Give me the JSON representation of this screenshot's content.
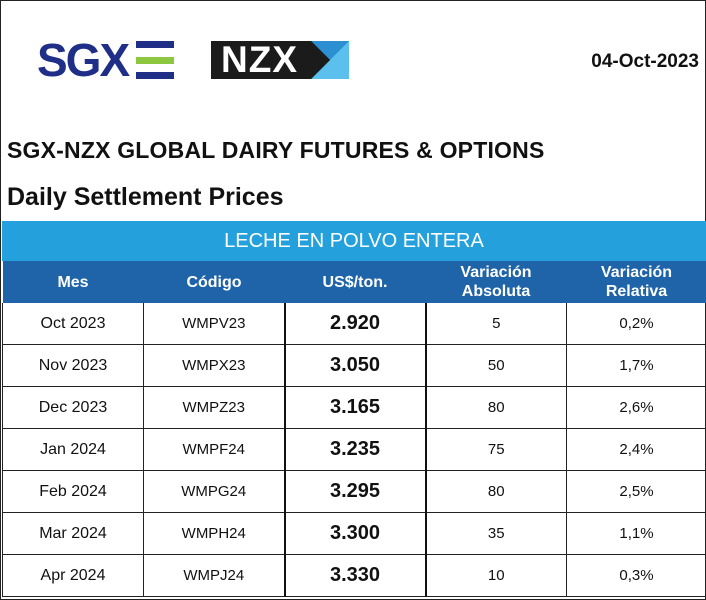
{
  "header": {
    "date": "04-Oct-2023",
    "sgx_logo_text": "SGX",
    "nzx_logo_text": "NZX",
    "title": "SGX-NZX GLOBAL DAIRY FUTURES & OPTIONS",
    "subtitle": "Daily Settlement Prices"
  },
  "colors": {
    "sgx_blue": "#1f2e86",
    "sgx_green": "#8dc63f",
    "banner": "#24a1dc",
    "table_header": "#1f64a8"
  },
  "table": {
    "banner": "LECHE EN POLVO ENTERA",
    "columns": {
      "mes": "Mes",
      "codigo": "Código",
      "precio": "US$/ton.",
      "var_abs_1": "Variación",
      "var_abs_2": "Absoluta",
      "var_rel_1": "Variación",
      "var_rel_2": "Relativa"
    },
    "rows": [
      {
        "mes": "Oct 2023",
        "codigo": "WMPV23",
        "precio": "2.920",
        "var_abs": "5",
        "var_rel": "0,2%"
      },
      {
        "mes": "Nov 2023",
        "codigo": "WMPX23",
        "precio": "3.050",
        "var_abs": "50",
        "var_rel": "1,7%"
      },
      {
        "mes": "Dec 2023",
        "codigo": "WMPZ23",
        "precio": "3.165",
        "var_abs": "80",
        "var_rel": "2,6%"
      },
      {
        "mes": "Jan 2024",
        "codigo": "WMPF24",
        "precio": "3.235",
        "var_abs": "75",
        "var_rel": "2,4%"
      },
      {
        "mes": "Feb 2024",
        "codigo": "WMPG24",
        "precio": "3.295",
        "var_abs": "80",
        "var_rel": "2,5%"
      },
      {
        "mes": "Mar 2024",
        "codigo": "WMPH24",
        "precio": "3.300",
        "var_abs": "35",
        "var_rel": "1,1%"
      },
      {
        "mes": "Apr 2024",
        "codigo": "WMPJ24",
        "precio": "3.330",
        "var_abs": "10",
        "var_rel": "0,3%"
      }
    ]
  }
}
